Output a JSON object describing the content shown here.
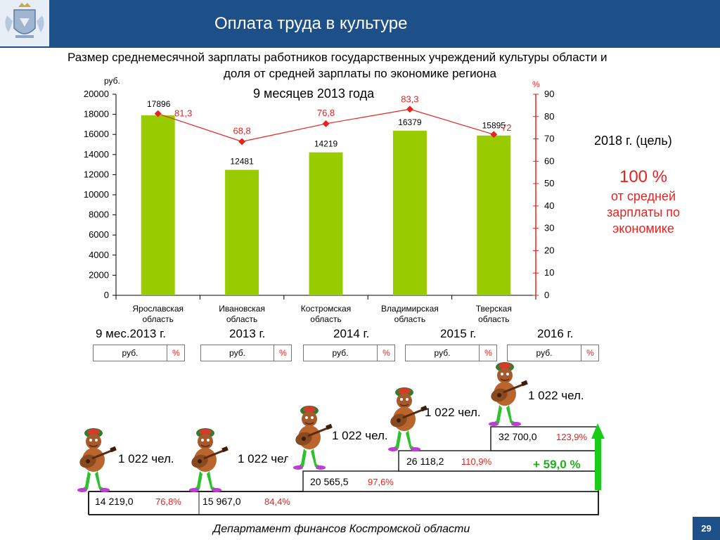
{
  "header": {
    "title": "Оплата труда в культуре"
  },
  "subtitle": {
    "line1": "Размер среднемесячной зарплаты работников государственных учреждений культуры области и",
    "line2": "доля от средней зарплаты по экономике региона"
  },
  "period": "9 месяцев 2013 года",
  "goal": {
    "year": "2018 г. (цель)",
    "percent": "100 %",
    "text_lines": [
      "от средней",
      "зарплаты по",
      "экономике"
    ]
  },
  "chart_data": {
    "type": "bar",
    "categories": [
      "Ярославская область",
      "Ивановская область",
      "Костромская область",
      "Владимирская область",
      "Тверская область"
    ],
    "category_lines": [
      [
        "Ярославская",
        "область"
      ],
      [
        "Ивановская",
        "область"
      ],
      [
        "Костромская",
        "область"
      ],
      [
        "Владимирская",
        "область"
      ],
      [
        "Тверская",
        "область"
      ]
    ],
    "series": [
      {
        "name": "руб.",
        "type": "bar",
        "axis": "left",
        "color": "#99cc00",
        "values": [
          17896,
          12481,
          14219,
          16379,
          15895
        ]
      },
      {
        "name": "%",
        "type": "line",
        "axis": "right",
        "color": "#e8221f",
        "values": [
          81.3,
          68.8,
          76.8,
          83.3,
          72
        ]
      }
    ],
    "bar_labels": [
      "17896",
      "12481",
      "14219",
      "16379",
      "15895"
    ],
    "line_labels": [
      "81,3",
      "68,8",
      "76,8",
      "83,3",
      "72"
    ],
    "ylabel": "руб.",
    "y2label": "%",
    "ylim": [
      0,
      20000
    ],
    "y_ticks": [
      0,
      2000,
      4000,
      6000,
      8000,
      10000,
      12000,
      14000,
      16000,
      18000,
      20000
    ],
    "y2lim": [
      0,
      90
    ],
    "y2_ticks": [
      0,
      10,
      20,
      30,
      40,
      50,
      60,
      70,
      80,
      90
    ],
    "grid": false,
    "legend": "none"
  },
  "years": [
    "9 мес.2013 г.",
    "2013 г.",
    "2014 г.",
    "2015 г.",
    "2016 г."
  ],
  "col_headers": [
    {
      "rub": "руб.",
      "pct": "%"
    },
    {
      "rub": "руб.",
      "pct": "%"
    },
    {
      "rub": "руб.",
      "pct": "%"
    },
    {
      "rub": "руб.",
      "pct": "%"
    },
    {
      "rub": "руб.",
      "pct": "%"
    }
  ],
  "steps": [
    {
      "value": "14 219,0",
      "percent": "76,8%",
      "people": "1 022 чел."
    },
    {
      "value": "15 967,0",
      "percent": "84,4%",
      "people": "1 022 чел."
    },
    {
      "value": "20 565,5",
      "percent": "97,6%",
      "people": "1 022 чел."
    },
    {
      "value": "26 118,2",
      "percent": "110,9%",
      "people": "1 022 чел."
    },
    {
      "value": "32 700,0",
      "percent": "123,9%",
      "people": "1 022 чел."
    }
  ],
  "growth": "+ 59,0 %",
  "footer": "Департамент финансов  Костромской области",
  "page_number": "29",
  "colors": {
    "header": "#1d4f88",
    "bar": "#99cc00",
    "line": "#e8221f",
    "accent": "#e8221f",
    "arrow": "#19cc19"
  }
}
